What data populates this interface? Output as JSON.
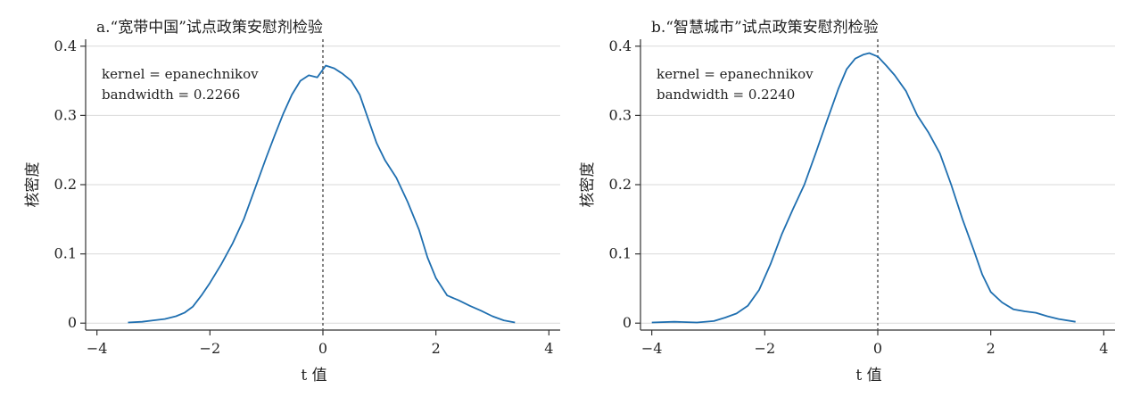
{
  "chart_data": [
    {
      "type": "line",
      "title": "a.“宽带中国”试点政策安慰剂检验",
      "xlabel": "t 值",
      "ylabel": "核密度",
      "xlim": [
        -4.2,
        4.2
      ],
      "ylim": [
        -0.01,
        0.41
      ],
      "xticks": [
        -4,
        -2,
        0,
        2,
        4
      ],
      "xtick_labels": [
        "−4",
        "−2",
        "0",
        "2",
        "4"
      ],
      "yticks": [
        0,
        0.1,
        0.2,
        0.3,
        0.4
      ],
      "ytick_labels": [
        "0",
        "0.1",
        "0.2",
        "0.3",
        "0.4"
      ],
      "grid": "horizontal",
      "reference_line_x": 0,
      "annotations": [
        "kernel = epanechnikov",
        "bandwidth = 0.2266"
      ],
      "line_color": "#1f6fb0",
      "series": [
        {
          "x": [
            -3.45,
            -3.2,
            -3.0,
            -2.8,
            -2.6,
            -2.45,
            -2.3,
            -2.15,
            -2.0,
            -1.8,
            -1.6,
            -1.4,
            -1.2,
            -1.0,
            -0.85,
            -0.7,
            -0.55,
            -0.4,
            -0.25,
            -0.1,
            0.05,
            0.2,
            0.35,
            0.5,
            0.65,
            0.8,
            0.95,
            1.1,
            1.3,
            1.5,
            1.7,
            1.85,
            2.0,
            2.2,
            2.4,
            2.6,
            2.8,
            3.0,
            3.2,
            3.4
          ],
          "y": [
            0.001,
            0.002,
            0.004,
            0.006,
            0.01,
            0.015,
            0.024,
            0.04,
            0.058,
            0.085,
            0.115,
            0.15,
            0.195,
            0.24,
            0.272,
            0.303,
            0.33,
            0.35,
            0.358,
            0.355,
            0.372,
            0.368,
            0.36,
            0.35,
            0.33,
            0.295,
            0.26,
            0.235,
            0.21,
            0.175,
            0.135,
            0.095,
            0.065,
            0.04,
            0.033,
            0.025,
            0.018,
            0.01,
            0.004,
            0.001
          ]
        }
      ]
    },
    {
      "type": "line",
      "title": "b.“智慧城市”试点政策安慰剂检验",
      "xlabel": "t 值",
      "ylabel": "核密度",
      "xlim": [
        -4.2,
        4.2
      ],
      "ylim": [
        -0.01,
        0.41
      ],
      "xticks": [
        -4,
        -2,
        0,
        2,
        4
      ],
      "xtick_labels": [
        "−4",
        "−2",
        "0",
        "2",
        "4"
      ],
      "yticks": [
        0,
        0.1,
        0.2,
        0.3,
        0.4
      ],
      "ytick_labels": [
        "0",
        "0.1",
        "0.2",
        "0.3",
        "0.4"
      ],
      "grid": "horizontal",
      "reference_line_x": 0,
      "annotations": [
        "kernel = epanechnikov",
        "bandwidth = 0.2240"
      ],
      "line_color": "#1f6fb0",
      "series": [
        {
          "x": [
            -4.0,
            -3.6,
            -3.2,
            -2.9,
            -2.7,
            -2.5,
            -2.3,
            -2.1,
            -1.9,
            -1.7,
            -1.5,
            -1.3,
            -1.1,
            -0.9,
            -0.7,
            -0.55,
            -0.4,
            -0.25,
            -0.15,
            0.0,
            0.15,
            0.3,
            0.5,
            0.7,
            0.9,
            1.1,
            1.3,
            1.5,
            1.7,
            1.85,
            2.0,
            2.2,
            2.4,
            2.6,
            2.8,
            3.0,
            3.2,
            3.5
          ],
          "y": [
            0.001,
            0.002,
            0.001,
            0.003,
            0.008,
            0.014,
            0.025,
            0.048,
            0.085,
            0.128,
            0.165,
            0.2,
            0.245,
            0.292,
            0.338,
            0.367,
            0.382,
            0.388,
            0.39,
            0.385,
            0.372,
            0.358,
            0.335,
            0.3,
            0.275,
            0.245,
            0.2,
            0.15,
            0.105,
            0.07,
            0.045,
            0.03,
            0.02,
            0.017,
            0.015,
            0.01,
            0.006,
            0.002
          ]
        }
      ]
    }
  ]
}
